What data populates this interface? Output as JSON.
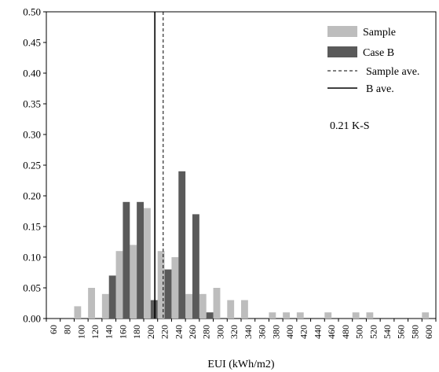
{
  "chart_data": {
    "type": "bar",
    "title": "",
    "xlabel": "EUI (kWh/m2)",
    "ylabel": "",
    "ylim": [
      0,
      0.5
    ],
    "yticks": [
      "0.00",
      "0.05",
      "0.10",
      "0.15",
      "0.20",
      "0.25",
      "0.30",
      "0.35",
      "0.40",
      "0.45",
      "0.50"
    ],
    "categories": [
      "60",
      "80",
      "100",
      "120",
      "140",
      "160",
      "180",
      "200",
      "220",
      "240",
      "260",
      "280",
      "300",
      "320",
      "340",
      "360",
      "380",
      "400",
      "420",
      "440",
      "460",
      "480",
      "500",
      "520",
      "540",
      "560",
      "580",
      "600"
    ],
    "series": [
      {
        "name": "Sample",
        "color": "#bdbdbd",
        "values": [
          0,
          0,
          0.02,
          0.05,
          0.04,
          0.11,
          0.12,
          0.18,
          0.11,
          0.1,
          0.04,
          0.04,
          0.05,
          0.03,
          0.03,
          0,
          0.01,
          0.01,
          0.01,
          0,
          0.01,
          0,
          0.01,
          0.01,
          0,
          0,
          0,
          0.01
        ]
      },
      {
        "name": "Case B",
        "color": "#5a5a5a",
        "values": [
          0,
          0,
          0,
          0,
          0.07,
          0.19,
          0.19,
          0.03,
          0.08,
          0.24,
          0.17,
          0.01,
          0,
          0,
          0,
          0,
          0,
          0,
          0,
          0,
          0,
          0,
          0,
          0,
          0,
          0,
          0,
          0
        ]
      }
    ],
    "reference_lines": [
      {
        "name": "Sample ave.",
        "style": "dashed",
        "x": 218
      },
      {
        "name": "B ave.",
        "style": "solid",
        "x": 206
      }
    ],
    "annotation": "0.21 K-S",
    "legend_position": "top-right",
    "grid": false
  }
}
